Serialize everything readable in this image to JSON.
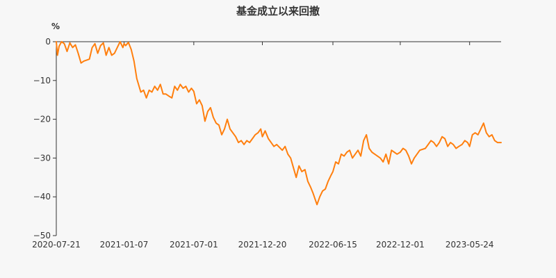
{
  "chart_data": {
    "type": "line",
    "title": "基金成立以来回撤",
    "ylabel": "%",
    "xlabel": "",
    "ylim": [
      -50,
      0
    ],
    "y_ticks": [
      0,
      -10,
      -20,
      -30,
      -40,
      -50
    ],
    "x_tick_labels": [
      "2020-07-21",
      "2021-01-07",
      "2021-07-01",
      "2021-12-20",
      "2022-06-15",
      "2022-12-01",
      "2023-05-24"
    ],
    "x_range": [
      "2020-07-21",
      "2023-08-11"
    ],
    "grid": false,
    "colors": {
      "line": "#ff7f0e",
      "axis": "#333333",
      "background": "#f7f7f7"
    },
    "series": [
      {
        "x": [
          "2020-07-21",
          "2020-07-24",
          "2020-07-28",
          "2020-08-03",
          "2020-08-10",
          "2020-08-17",
          "2020-08-24",
          "2020-08-31",
          "2020-09-07",
          "2020-09-14",
          "2020-09-21",
          "2020-09-28",
          "2020-10-12",
          "2020-10-19",
          "2020-10-26",
          "2020-11-02",
          "2020-11-09",
          "2020-11-16",
          "2020-11-23",
          "2020-11-30",
          "2020-12-07",
          "2020-12-14",
          "2020-12-21",
          "2020-12-28",
          "2021-01-04",
          "2021-01-07",
          "2021-01-11",
          "2021-01-18",
          "2021-01-25",
          "2021-02-01",
          "2021-02-08",
          "2021-02-18",
          "2021-02-25",
          "2021-03-04",
          "2021-03-11",
          "2021-03-18",
          "2021-03-25",
          "2021-04-01",
          "2021-04-08",
          "2021-04-15",
          "2021-04-22",
          "2021-04-29",
          "2021-05-07",
          "2021-05-14",
          "2021-05-21",
          "2021-05-28",
          "2021-06-04",
          "2021-06-11",
          "2021-06-18",
          "2021-06-25",
          "2021-07-01",
          "2021-07-08",
          "2021-07-15",
          "2021-07-22",
          "2021-07-29",
          "2021-08-05",
          "2021-08-12",
          "2021-08-19",
          "2021-08-26",
          "2021-09-02",
          "2021-09-09",
          "2021-09-16",
          "2021-09-23",
          "2021-09-30",
          "2021-10-14",
          "2021-10-21",
          "2021-10-28",
          "2021-11-04",
          "2021-11-11",
          "2021-11-18",
          "2021-11-25",
          "2021-12-02",
          "2021-12-09",
          "2021-12-16",
          "2021-12-20",
          "2021-12-27",
          "2022-01-04",
          "2022-01-11",
          "2022-01-18",
          "2022-01-25",
          "2022-02-08",
          "2022-02-15",
          "2022-02-22",
          "2022-03-01",
          "2022-03-08",
          "2022-03-15",
          "2022-03-22",
          "2022-03-29",
          "2022-04-06",
          "2022-04-13",
          "2022-04-20",
          "2022-04-26",
          "2022-05-06",
          "2022-05-13",
          "2022-05-20",
          "2022-05-27",
          "2022-06-03",
          "2022-06-10",
          "2022-06-15",
          "2022-06-22",
          "2022-06-29",
          "2022-07-06",
          "2022-07-13",
          "2022-07-20",
          "2022-07-27",
          "2022-08-03",
          "2022-08-10",
          "2022-08-17",
          "2022-08-24",
          "2022-08-31",
          "2022-09-07",
          "2022-09-14",
          "2022-09-21",
          "2022-09-28",
          "2022-10-12",
          "2022-10-19",
          "2022-10-26",
          "2022-11-02",
          "2022-11-09",
          "2022-11-16",
          "2022-11-23",
          "2022-12-01",
          "2022-12-08",
          "2022-12-15",
          "2022-12-22",
          "2022-12-29",
          "2023-01-05",
          "2023-01-12",
          "2023-01-19",
          "2023-02-02",
          "2023-02-09",
          "2023-02-16",
          "2023-02-23",
          "2023-03-02",
          "2023-03-09",
          "2023-03-16",
          "2023-03-23",
          "2023-03-30",
          "2023-04-06",
          "2023-04-13",
          "2023-04-20",
          "2023-04-27",
          "2023-05-05",
          "2023-05-12",
          "2023-05-19",
          "2023-05-24",
          "2023-05-31",
          "2023-06-07",
          "2023-06-14",
          "2023-06-21",
          "2023-06-28",
          "2023-07-05",
          "2023-07-12",
          "2023-07-19",
          "2023-07-26",
          "2023-08-02",
          "2023-08-11"
        ],
        "y": [
          0,
          -3.5,
          -1.2,
          0,
          -0.5,
          -2.5,
          -0.3,
          -1.5,
          -0.8,
          -3.0,
          -5.5,
          -5.0,
          -4.5,
          -1.5,
          -0.5,
          -3.0,
          -1.0,
          -0.3,
          -3.5,
          -1.5,
          -3.5,
          -3.0,
          -1.5,
          0,
          -1.5,
          -0.5,
          -1.0,
          -0.2,
          -2.0,
          -5.0,
          -9.5,
          -13.0,
          -12.5,
          -14.5,
          -12.5,
          -13.0,
          -11.5,
          -12.5,
          -11.0,
          -13.5,
          -13.5,
          -14.0,
          -14.5,
          -11.5,
          -12.5,
          -11.0,
          -12.0,
          -11.5,
          -13.0,
          -12.0,
          -12.8,
          -16.0,
          -15.0,
          -16.5,
          -20.5,
          -18.0,
          -17.0,
          -19.5,
          -21.0,
          -21.5,
          -24.0,
          -22.5,
          -20.0,
          -22.5,
          -24.5,
          -26.0,
          -25.5,
          -26.5,
          -25.5,
          -26.0,
          -25.0,
          -24.0,
          -23.5,
          -22.5,
          -24.5,
          -23.0,
          -25.0,
          -26.0,
          -27.0,
          -26.5,
          -28.0,
          -27.0,
          -29.0,
          -30.0,
          -32.5,
          -35.0,
          -32.0,
          -33.5,
          -33.0,
          -36.0,
          -37.5,
          -39.0,
          -42.0,
          -40.0,
          -38.5,
          -38.0,
          -36.0,
          -34.5,
          -33.5,
          -31.0,
          -31.5,
          -29.0,
          -29.5,
          -28.5,
          -28.0,
          -30.0,
          -29.0,
          -28.0,
          -29.5,
          -25.5,
          -24.0,
          -27.5,
          -28.5,
          -29.0,
          -30.0,
          -31.0,
          -29.0,
          -31.5,
          -28.0,
          -28.5,
          -29.0,
          -28.5,
          -27.5,
          -28.0,
          -29.5,
          -31.5,
          -30.0,
          -29.0,
          -28.0,
          -27.5,
          -26.5,
          -25.5,
          -26.0,
          -27.0,
          -26.0,
          -24.5,
          -25.0,
          -27.0,
          -26.0,
          -26.5,
          -27.5,
          -27.0,
          -26.5,
          -25.5,
          -26.0,
          -27.0,
          -24.0,
          -23.5,
          -24.0,
          -22.5,
          -21.0,
          -23.5,
          -24.5,
          -24.0,
          -25.5,
          -26.0,
          -26.0
        ]
      }
    ]
  }
}
